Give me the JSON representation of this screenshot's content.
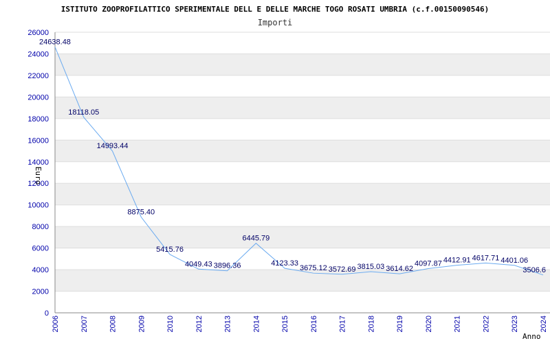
{
  "chart_data": {
    "type": "line",
    "title": "ISTITUTO ZOOPROFILATTICO SPERIMENTALE DELL E DELLE MARCHE TOGO ROSATI UMBRIA (c.f.00150090546)",
    "subtitle": "Importi",
    "xlabel": "Anno",
    "ylabel": "Euro",
    "ylim": [
      0,
      26000
    ],
    "yticks": [
      0,
      2000,
      4000,
      6000,
      8000,
      10000,
      12000,
      14000,
      16000,
      18000,
      20000,
      22000,
      24000,
      26000
    ],
    "grid": "alternating horizontal bands",
    "categories": [
      "2006",
      "2007",
      "2008",
      "2009",
      "2010",
      "2012",
      "2013",
      "2014",
      "2015",
      "2016",
      "2017",
      "2018",
      "2019",
      "2020",
      "2021",
      "2022",
      "2023",
      "2024"
    ],
    "values": [
      24638.48,
      18118.05,
      14993.44,
      8875.4,
      5415.76,
      4049.43,
      3896.36,
      6445.79,
      4123.33,
      3675.12,
      3572.69,
      3815.03,
      3614.62,
      4097.87,
      4412.91,
      4617.71,
      4401.06,
      3506.6
    ],
    "data_labels": [
      "24638.48",
      "18118.05",
      "14993.44",
      "8875.40",
      "5415.76",
      "4049.43",
      "3896.36",
      "6445.79",
      "4123.33",
      "3675.12",
      "3572.69",
      "3815.03",
      "3614.62",
      "4097.87",
      "4412.91",
      "4617.71",
      "4401.06",
      "3506.6"
    ],
    "colors": {
      "line": "#6aaaf0",
      "band": "#eeeeee",
      "tick_text": "#0000aa",
      "label_text": "#000066"
    }
  }
}
